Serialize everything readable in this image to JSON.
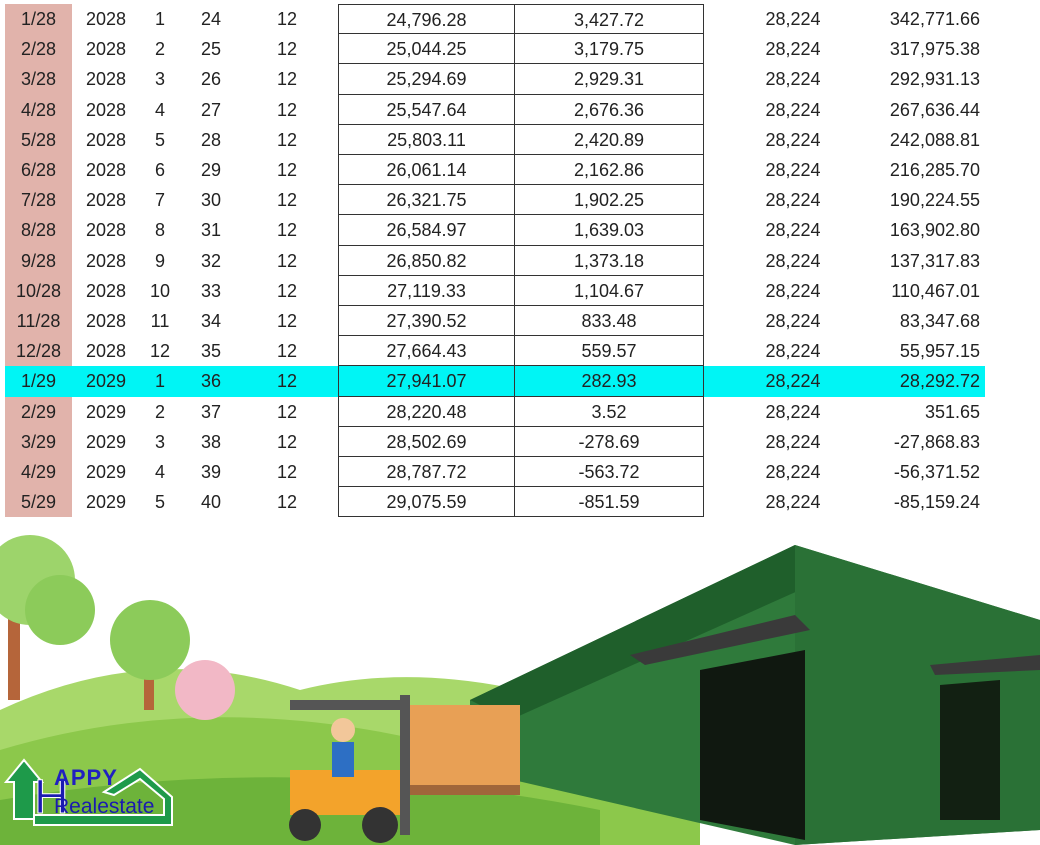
{
  "table": {
    "highlight_color": "#00f5f5",
    "date_column_color": "#e1b3ab",
    "highlighted_row": "1/29",
    "rows": [
      [
        "1/28",
        "2028",
        "1",
        "24",
        "12",
        "24,796.28",
        "3,427.72",
        "28,224",
        "342,771.66"
      ],
      [
        "2/28",
        "2028",
        "2",
        "25",
        "12",
        "25,044.25",
        "3,179.75",
        "28,224",
        "317,975.38"
      ],
      [
        "3/28",
        "2028",
        "3",
        "26",
        "12",
        "25,294.69",
        "2,929.31",
        "28,224",
        "292,931.13"
      ],
      [
        "4/28",
        "2028",
        "4",
        "27",
        "12",
        "25,547.64",
        "2,676.36",
        "28,224",
        "267,636.44"
      ],
      [
        "5/28",
        "2028",
        "5",
        "28",
        "12",
        "25,803.11",
        "2,420.89",
        "28,224",
        "242,088.81"
      ],
      [
        "6/28",
        "2028",
        "6",
        "29",
        "12",
        "26,061.14",
        "2,162.86",
        "28,224",
        "216,285.70"
      ],
      [
        "7/28",
        "2028",
        "7",
        "30",
        "12",
        "26,321.75",
        "1,902.25",
        "28,224",
        "190,224.55"
      ],
      [
        "8/28",
        "2028",
        "8",
        "31",
        "12",
        "26,584.97",
        "1,639.03",
        "28,224",
        "163,902.80"
      ],
      [
        "9/28",
        "2028",
        "9",
        "32",
        "12",
        "26,850.82",
        "1,373.18",
        "28,224",
        "137,317.83"
      ],
      [
        "10/28",
        "2028",
        "10",
        "33",
        "12",
        "27,119.33",
        "1,104.67",
        "28,224",
        "110,467.01"
      ],
      [
        "11/28",
        "2028",
        "11",
        "34",
        "12",
        "27,390.52",
        "833.48",
        "28,224",
        "83,347.68"
      ],
      [
        "12/28",
        "2028",
        "12",
        "35",
        "12",
        "27,664.43",
        "559.57",
        "28,224",
        "55,957.15"
      ],
      [
        "1/29",
        "2029",
        "1",
        "36",
        "12",
        "27,941.07",
        "282.93",
        "28,224",
        "28,292.72"
      ],
      [
        "2/29",
        "2029",
        "2",
        "37",
        "12",
        "28,220.48",
        "3.52",
        "28,224",
        "351.65"
      ],
      [
        "3/29",
        "2029",
        "3",
        "38",
        "12",
        "28,502.69",
        "-278.69",
        "28,224",
        "-27,868.83"
      ],
      [
        "4/29",
        "2029",
        "4",
        "39",
        "12",
        "28,787.72",
        "-563.72",
        "28,224",
        "-56,371.52"
      ],
      [
        "5/29",
        "2029",
        "5",
        "40",
        "12",
        "29,075.59",
        "-851.59",
        "28,224",
        "-85,159.24"
      ]
    ]
  },
  "logo": {
    "line1": "APPY",
    "line2": "Realestate",
    "letter": "H"
  }
}
